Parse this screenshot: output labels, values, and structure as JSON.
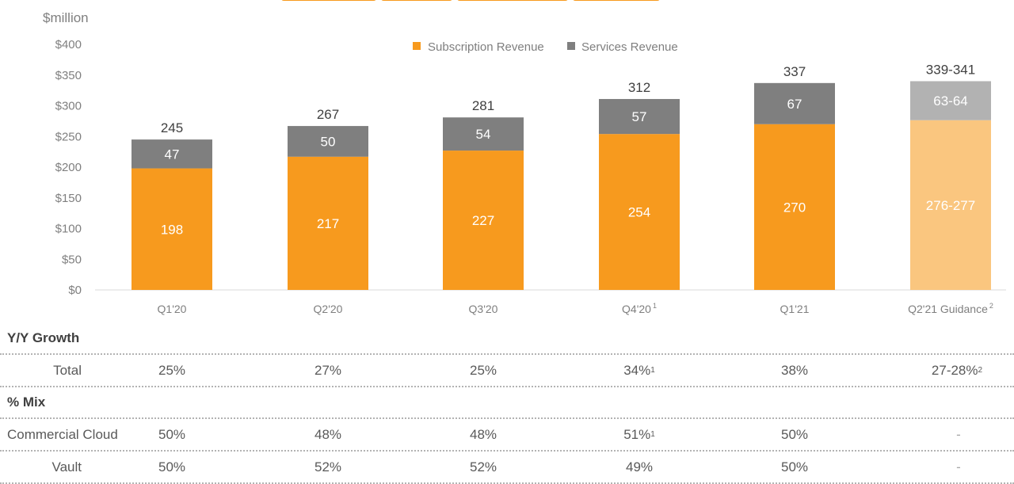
{
  "colors": {
    "subscription": "#f79a1e",
    "services": "#7f7f7f",
    "guidance_subscription": "#fac67f",
    "guidance_services": "#b2b2b2",
    "axis_text": "#7f7f7f"
  },
  "chart_data": {
    "type": "bar",
    "stacked": true,
    "ylabel": "$million",
    "ylim": [
      0,
      400
    ],
    "yticks": [
      "$0",
      "$50",
      "$100",
      "$150",
      "$200",
      "$250",
      "$300",
      "$350",
      "$400"
    ],
    "ytick_values": [
      0,
      50,
      100,
      150,
      200,
      250,
      300,
      350,
      400
    ],
    "legend_position": "top-center",
    "grid": false,
    "categories": [
      "Q1'20",
      "Q2'20",
      "Q3'20",
      "Q4'20",
      "Q1'21",
      "Q2'21 Guidance"
    ],
    "category_superscripts": [
      "",
      "",
      "",
      "1",
      "",
      "2"
    ],
    "series": [
      {
        "name": "Subscription Revenue",
        "values": [
          198,
          217,
          227,
          254,
          270,
          276.5
        ],
        "labels": [
          "198",
          "217",
          "227",
          "254",
          "270",
          "276-277"
        ]
      },
      {
        "name": "Services Revenue",
        "values": [
          47,
          50,
          54,
          57,
          67,
          63.5
        ],
        "labels": [
          "47",
          "50",
          "54",
          "57",
          "67",
          "63-64"
        ]
      }
    ],
    "totals": [
      "245",
      "267",
      "281",
      "312",
      "337",
      "339-341"
    ],
    "guidance_index": 5
  },
  "table": {
    "section_growth": "Y/Y Growth",
    "section_mix": "% Mix",
    "rows": [
      {
        "label": "Total",
        "values": [
          "25%",
          "27%",
          "25%",
          "34%",
          "38%",
          "27-28%"
        ],
        "sups": [
          "",
          "",
          "",
          "1",
          "",
          "2"
        ]
      },
      {
        "label": "Commercial Cloud",
        "values": [
          "50%",
          "48%",
          "48%",
          "51%",
          "50%",
          "-"
        ],
        "sups": [
          "",
          "",
          "",
          "1",
          "",
          ""
        ]
      },
      {
        "label": "Vault",
        "values": [
          "50%",
          "52%",
          "52%",
          "49%",
          "50%",
          "-"
        ],
        "sups": [
          "",
          "",
          "",
          "",
          "",
          ""
        ]
      }
    ]
  }
}
